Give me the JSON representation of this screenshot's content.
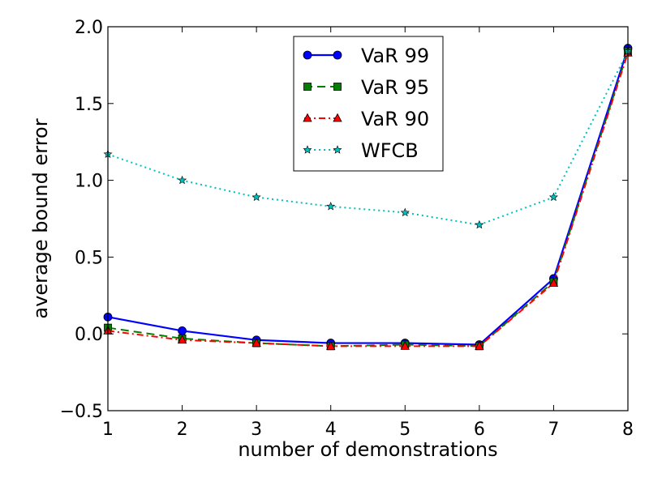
{
  "chart_data": {
    "type": "line",
    "title": "",
    "xlabel": "number of demonstrations",
    "ylabel": "average bound error",
    "x": [
      1,
      2,
      3,
      4,
      5,
      6,
      7,
      8
    ],
    "xlim": [
      1,
      8
    ],
    "ylim": [
      -0.5,
      2.0
    ],
    "xticks": [
      "1",
      "2",
      "3",
      "4",
      "5",
      "6",
      "7",
      "8"
    ],
    "yticks": [
      "−0.5",
      "0.0",
      "0.5",
      "1.0",
      "1.5",
      "2.0"
    ],
    "ytick_values": [
      -0.5,
      0.0,
      0.5,
      1.0,
      1.5,
      2.0
    ],
    "grid": false,
    "legend_position": "top-center",
    "series": [
      {
        "name": "VaR 99",
        "color": "#0000ff",
        "marker": "circle",
        "line_style": "solid",
        "values": [
          0.11,
          0.02,
          -0.04,
          -0.06,
          -0.06,
          -0.07,
          0.36,
          1.86
        ]
      },
      {
        "name": "VaR 95",
        "color": "#008000",
        "marker": "square",
        "line_style": "dashed",
        "values": [
          0.04,
          -0.03,
          -0.06,
          -0.08,
          -0.07,
          -0.08,
          0.34,
          1.84
        ]
      },
      {
        "name": "VaR 90",
        "color": "#ff0000",
        "marker": "triangle",
        "line_style": "dashdot",
        "values": [
          0.02,
          -0.04,
          -0.06,
          -0.08,
          -0.08,
          -0.08,
          0.33,
          1.83
        ]
      },
      {
        "name": "WFCB",
        "color": "#00bfbf",
        "marker": "star",
        "line_style": "dotted",
        "values": [
          1.17,
          1.0,
          0.89,
          0.83,
          0.79,
          0.71,
          0.89,
          1.84
        ]
      }
    ]
  }
}
